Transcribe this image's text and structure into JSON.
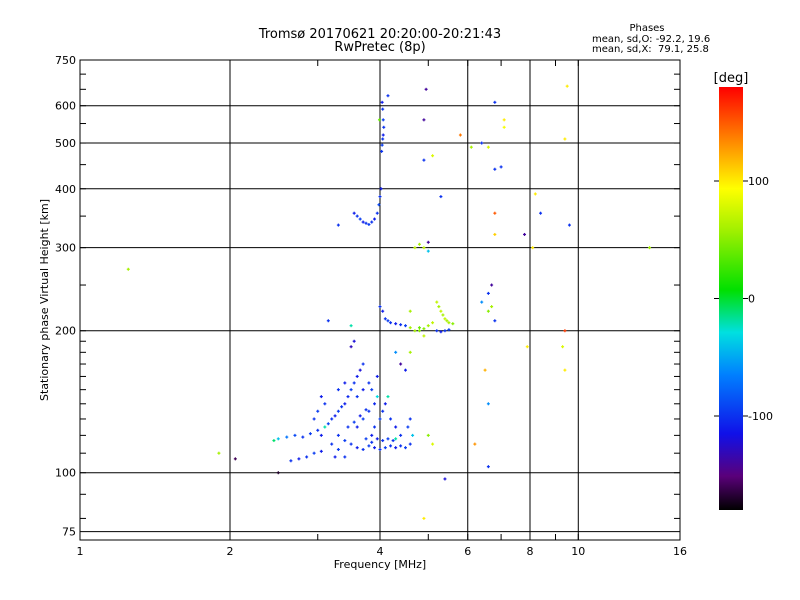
{
  "title": "Tromsø 20170621 20:20:00-20:21:43",
  "subtitle": "RwPretec (8p)",
  "phases": {
    "heading": "Phases",
    "o_line": "mean, sd,O: -92.2, 19.6",
    "x_line": "mean, sd,X:  79.1, 25.8"
  },
  "chart_data": {
    "type": "scatter",
    "title": "Tromsø 20170621 20:20:00-20:21:43",
    "subtitle": "RwPretec (8p)",
    "xlabel": "Frequency [MHz]",
    "ylabel": "Stationary phase Virtual Height [km]",
    "xscale": "log",
    "yscale": "log",
    "xlim": [
      1,
      16
    ],
    "ylim": [
      72,
      750
    ],
    "xticks": [
      1,
      2,
      4,
      6,
      8,
      10,
      16
    ],
    "yticks": [
      75,
      100,
      200,
      300,
      400,
      500,
      600,
      750
    ],
    "grid": true,
    "colorbar": {
      "label": "[deg]",
      "range": [
        -180,
        180
      ],
      "ticks": [
        100,
        0,
        -100
      ]
    },
    "series": [
      {
        "points": [
          [
            1.25,
            270,
            60
          ],
          [
            1.9,
            110,
            60
          ],
          [
            2.05,
            107,
            -160
          ],
          [
            2.5,
            100,
            -170
          ],
          [
            2.45,
            117,
            -10
          ],
          [
            2.5,
            118,
            -40
          ],
          [
            2.6,
            119,
            -70
          ],
          [
            2.7,
            120,
            -90
          ],
          [
            2.8,
            119,
            -100
          ],
          [
            2.9,
            121,
            -95
          ],
          [
            3.0,
            123,
            -100
          ],
          [
            3.05,
            120,
            -110
          ],
          [
            2.65,
            106,
            -100
          ],
          [
            2.75,
            107,
            -110
          ],
          [
            2.85,
            108,
            -100
          ],
          [
            2.95,
            110,
            -95
          ],
          [
            3.05,
            111,
            -110
          ],
          [
            3.1,
            125,
            -20
          ],
          [
            3.15,
            127,
            -90
          ],
          [
            3.2,
            130,
            -100
          ],
          [
            3.25,
            132,
            -110
          ],
          [
            3.3,
            135,
            -95
          ],
          [
            3.35,
            138,
            -100
          ],
          [
            3.4,
            140,
            -110
          ],
          [
            3.45,
            145,
            -105
          ],
          [
            3.5,
            150,
            -95
          ],
          [
            3.55,
            155,
            -100
          ],
          [
            3.6,
            160,
            -110
          ],
          [
            3.65,
            165,
            -120
          ],
          [
            3.7,
            170,
            -100
          ],
          [
            3.5,
            185,
            -130
          ],
          [
            3.55,
            190,
            -120
          ],
          [
            3.3,
            120,
            -100
          ],
          [
            3.4,
            117,
            -95
          ],
          [
            3.5,
            115,
            -100
          ],
          [
            3.6,
            113,
            -110
          ],
          [
            3.7,
            112,
            -100
          ],
          [
            3.8,
            114,
            -95
          ],
          [
            3.9,
            113,
            -110
          ],
          [
            4.0,
            112,
            -100
          ],
          [
            4.1,
            113,
            -95
          ],
          [
            4.2,
            114,
            -100
          ],
          [
            4.3,
            113,
            -110
          ],
          [
            4.4,
            114,
            -100
          ],
          [
            4.5,
            113,
            -95
          ],
          [
            4.6,
            115,
            -100
          ],
          [
            3.2,
            115,
            -100
          ],
          [
            3.3,
            112,
            -95
          ],
          [
            3.25,
            108,
            -110
          ],
          [
            3.4,
            108,
            -100
          ],
          [
            3.6,
            125,
            -110
          ],
          [
            3.7,
            130,
            -95
          ],
          [
            3.8,
            135,
            -100
          ],
          [
            3.9,
            140,
            -105
          ],
          [
            3.95,
            145,
            -30
          ],
          [
            3.85,
            120,
            -110
          ],
          [
            3.9,
            125,
            -100
          ],
          [
            4.0,
            130,
            -95
          ],
          [
            4.05,
            135,
            -100
          ],
          [
            4.1,
            140,
            -110
          ],
          [
            4.15,
            145,
            -20
          ],
          [
            4.2,
            130,
            -100
          ],
          [
            4.3,
            125,
            -110
          ],
          [
            4.4,
            120,
            -100
          ],
          [
            4.55,
            125,
            -95
          ],
          [
            4.6,
            130,
            -100
          ],
          [
            4.65,
            120,
            -40
          ],
          [
            3.3,
            150,
            -100
          ],
          [
            3.4,
            155,
            -110
          ],
          [
            3.1,
            140,
            -100
          ],
          [
            3.0,
            135,
            -95
          ],
          [
            3.05,
            145,
            -110
          ],
          [
            2.95,
            130,
            -100
          ],
          [
            3.45,
            125,
            -100
          ],
          [
            3.55,
            128,
            -95
          ],
          [
            3.65,
            132,
            -110
          ],
          [
            3.75,
            136,
            -100
          ],
          [
            3.85,
            150,
            -95
          ],
          [
            3.95,
            160,
            -110
          ],
          [
            3.6,
            145,
            -100
          ],
          [
            3.7,
            150,
            -110
          ],
          [
            3.8,
            155,
            -100
          ],
          [
            3.75,
            118,
            -95
          ],
          [
            3.85,
            116,
            -100
          ],
          [
            3.95,
            118,
            -110
          ],
          [
            4.05,
            117,
            -100
          ],
          [
            4.15,
            118,
            -95
          ],
          [
            4.25,
            117,
            -100
          ],
          [
            3.15,
            210,
            -100
          ],
          [
            3.3,
            335,
            -100
          ],
          [
            3.5,
            205,
            -20
          ],
          [
            3.55,
            355,
            -110
          ],
          [
            3.6,
            350,
            -100
          ],
          [
            3.65,
            345,
            -95
          ],
          [
            3.7,
            340,
            -110
          ],
          [
            3.75,
            338,
            -100
          ],
          [
            3.8,
            336,
            -95
          ],
          [
            3.85,
            340,
            -100
          ],
          [
            3.9,
            345,
            -110
          ],
          [
            3.95,
            355,
            -100
          ],
          [
            3.98,
            370,
            -90
          ],
          [
            4.0,
            385,
            -100
          ],
          [
            4.02,
            400,
            -110
          ],
          [
            4.03,
            480,
            -100
          ],
          [
            4.04,
            495,
            -95
          ],
          [
            4.05,
            510,
            -100
          ],
          [
            4.06,
            520,
            -110
          ],
          [
            4.07,
            540,
            -100
          ],
          [
            4.06,
            560,
            -95
          ],
          [
            4.05,
            590,
            -100
          ],
          [
            4.04,
            610,
            -110
          ],
          [
            4.15,
            630,
            -100
          ],
          [
            3.99,
            560,
            40
          ],
          [
            4.0,
            225,
            -100
          ],
          [
            4.05,
            220,
            -110
          ],
          [
            4.1,
            212,
            -100
          ],
          [
            4.15,
            210,
            -95
          ],
          [
            4.2,
            208,
            -100
          ],
          [
            4.3,
            207,
            -110
          ],
          [
            4.4,
            206,
            -100
          ],
          [
            4.5,
            205,
            -95
          ],
          [
            4.6,
            203,
            60
          ],
          [
            4.7,
            200,
            60
          ],
          [
            4.8,
            203,
            40
          ],
          [
            4.9,
            202,
            50
          ],
          [
            5.0,
            205,
            60
          ],
          [
            5.1,
            208,
            70
          ],
          [
            5.2,
            230,
            70
          ],
          [
            5.25,
            225,
            60
          ],
          [
            5.3,
            220,
            70
          ],
          [
            5.35,
            216,
            60
          ],
          [
            5.4,
            212,
            70
          ],
          [
            5.45,
            210,
            60
          ],
          [
            5.5,
            208,
            60
          ],
          [
            5.6,
            207,
            50
          ],
          [
            5.2,
            200,
            -100
          ],
          [
            5.3,
            199,
            -110
          ],
          [
            5.4,
            200,
            -100
          ],
          [
            5.5,
            201,
            -95
          ],
          [
            4.3,
            180,
            -60
          ],
          [
            4.4,
            170,
            -140
          ],
          [
            4.5,
            165,
            -110
          ],
          [
            4.6,
            180,
            60
          ],
          [
            4.8,
            200,
            50
          ],
          [
            4.9,
            195,
            70
          ],
          [
            4.7,
            300,
            70
          ],
          [
            4.8,
            305,
            60
          ],
          [
            4.9,
            300,
            70
          ],
          [
            5.0,
            308,
            -140
          ],
          [
            5.0,
            295,
            -40
          ],
          [
            4.6,
            220,
            60
          ],
          [
            4.9,
            560,
            -140
          ],
          [
            4.95,
            650,
            -140
          ],
          [
            5.1,
            470,
            80
          ],
          [
            4.9,
            460,
            -100
          ],
          [
            5.3,
            385,
            -100
          ],
          [
            5.8,
            520,
            140
          ],
          [
            6.1,
            490,
            60
          ],
          [
            6.4,
            500,
            -100
          ],
          [
            6.6,
            490,
            80
          ],
          [
            6.8,
            610,
            -100
          ],
          [
            7.1,
            560,
            100
          ],
          [
            7.1,
            540,
            90
          ],
          [
            6.8,
            440,
            -100
          ],
          [
            7.0,
            445,
            -100
          ],
          [
            6.8,
            355,
            150
          ],
          [
            6.8,
            320,
            110
          ],
          [
            6.7,
            250,
            -140
          ],
          [
            6.6,
            240,
            -100
          ],
          [
            6.7,
            225,
            60
          ],
          [
            6.6,
            220,
            50
          ],
          [
            6.8,
            210,
            -100
          ],
          [
            6.4,
            230,
            -60
          ],
          [
            6.6,
            140,
            -60
          ],
          [
            6.5,
            165,
            120
          ],
          [
            6.6,
            103,
            -100
          ],
          [
            6.2,
            115,
            130
          ],
          [
            5.4,
            97,
            -120
          ],
          [
            4.9,
            80,
            100
          ],
          [
            5.0,
            120,
            50
          ],
          [
            5.1,
            115,
            80
          ],
          [
            4.3,
            118,
            -20
          ],
          [
            7.8,
            320,
            -140
          ],
          [
            8.2,
            390,
            100
          ],
          [
            8.1,
            300,
            100
          ],
          [
            8.4,
            355,
            -100
          ],
          [
            7.9,
            185,
            100
          ],
          [
            9.5,
            660,
            100
          ],
          [
            9.4,
            510,
            100
          ],
          [
            9.6,
            335,
            -100
          ],
          [
            9.4,
            200,
            160
          ],
          [
            9.3,
            185,
            80
          ],
          [
            9.4,
            165,
            100
          ],
          [
            13.9,
            300,
            60
          ]
        ]
      }
    ]
  }
}
